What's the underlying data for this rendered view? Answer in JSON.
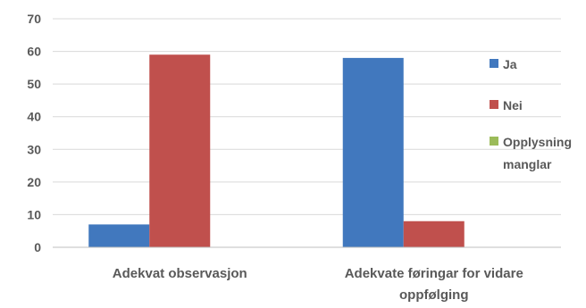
{
  "chart_data": {
    "type": "bar",
    "categories": [
      [
        "Adekvat observasjon"
      ],
      [
        "Adekvate føringar for vidare",
        "oppfølging"
      ]
    ],
    "series": [
      {
        "name": "Ja",
        "values": [
          7,
          58
        ],
        "color": "#4178BE"
      },
      {
        "name": "Nei",
        "values": [
          59,
          8
        ],
        "color": "#C0504D"
      },
      {
        "name": "Opplysning manglar",
        "legend_lines": [
          "Opplysning",
          "manglar"
        ],
        "values": [
          0,
          0
        ],
        "color": "#9BBB59"
      }
    ],
    "ylim": [
      0,
      70
    ],
    "yticks": [
      0,
      10,
      20,
      30,
      40,
      50,
      60,
      70
    ],
    "grid": true,
    "legend": "right"
  }
}
